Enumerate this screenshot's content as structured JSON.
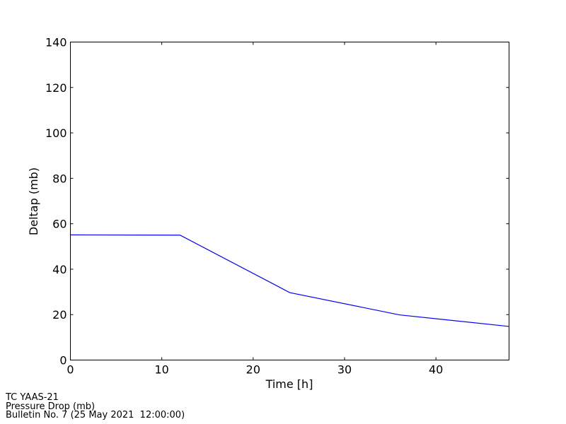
{
  "chart_data": {
    "type": "line",
    "title": "",
    "xlabel": "Time [h]",
    "ylabel": "Deltap (mb)",
    "xlim": [
      0,
      48
    ],
    "ylim": [
      0,
      140
    ],
    "xticks": [
      "0",
      "10",
      "20",
      "30",
      "40"
    ],
    "yticks": [
      "0",
      "20",
      "40",
      "60",
      "80",
      "100",
      "120",
      "140"
    ],
    "grid": false,
    "series": [
      {
        "x": [
          0,
          12,
          24,
          36,
          48
        ],
        "y": [
          55.1,
          55.0,
          29.7,
          19.9,
          14.8
        ],
        "color": "#0000ff"
      }
    ]
  },
  "footer": {
    "lines": [
      "TC YAAS-21",
      "Pressure Drop (mb)",
      "Bulletin No. 7 (25 May 2021  12:00:00)"
    ]
  }
}
